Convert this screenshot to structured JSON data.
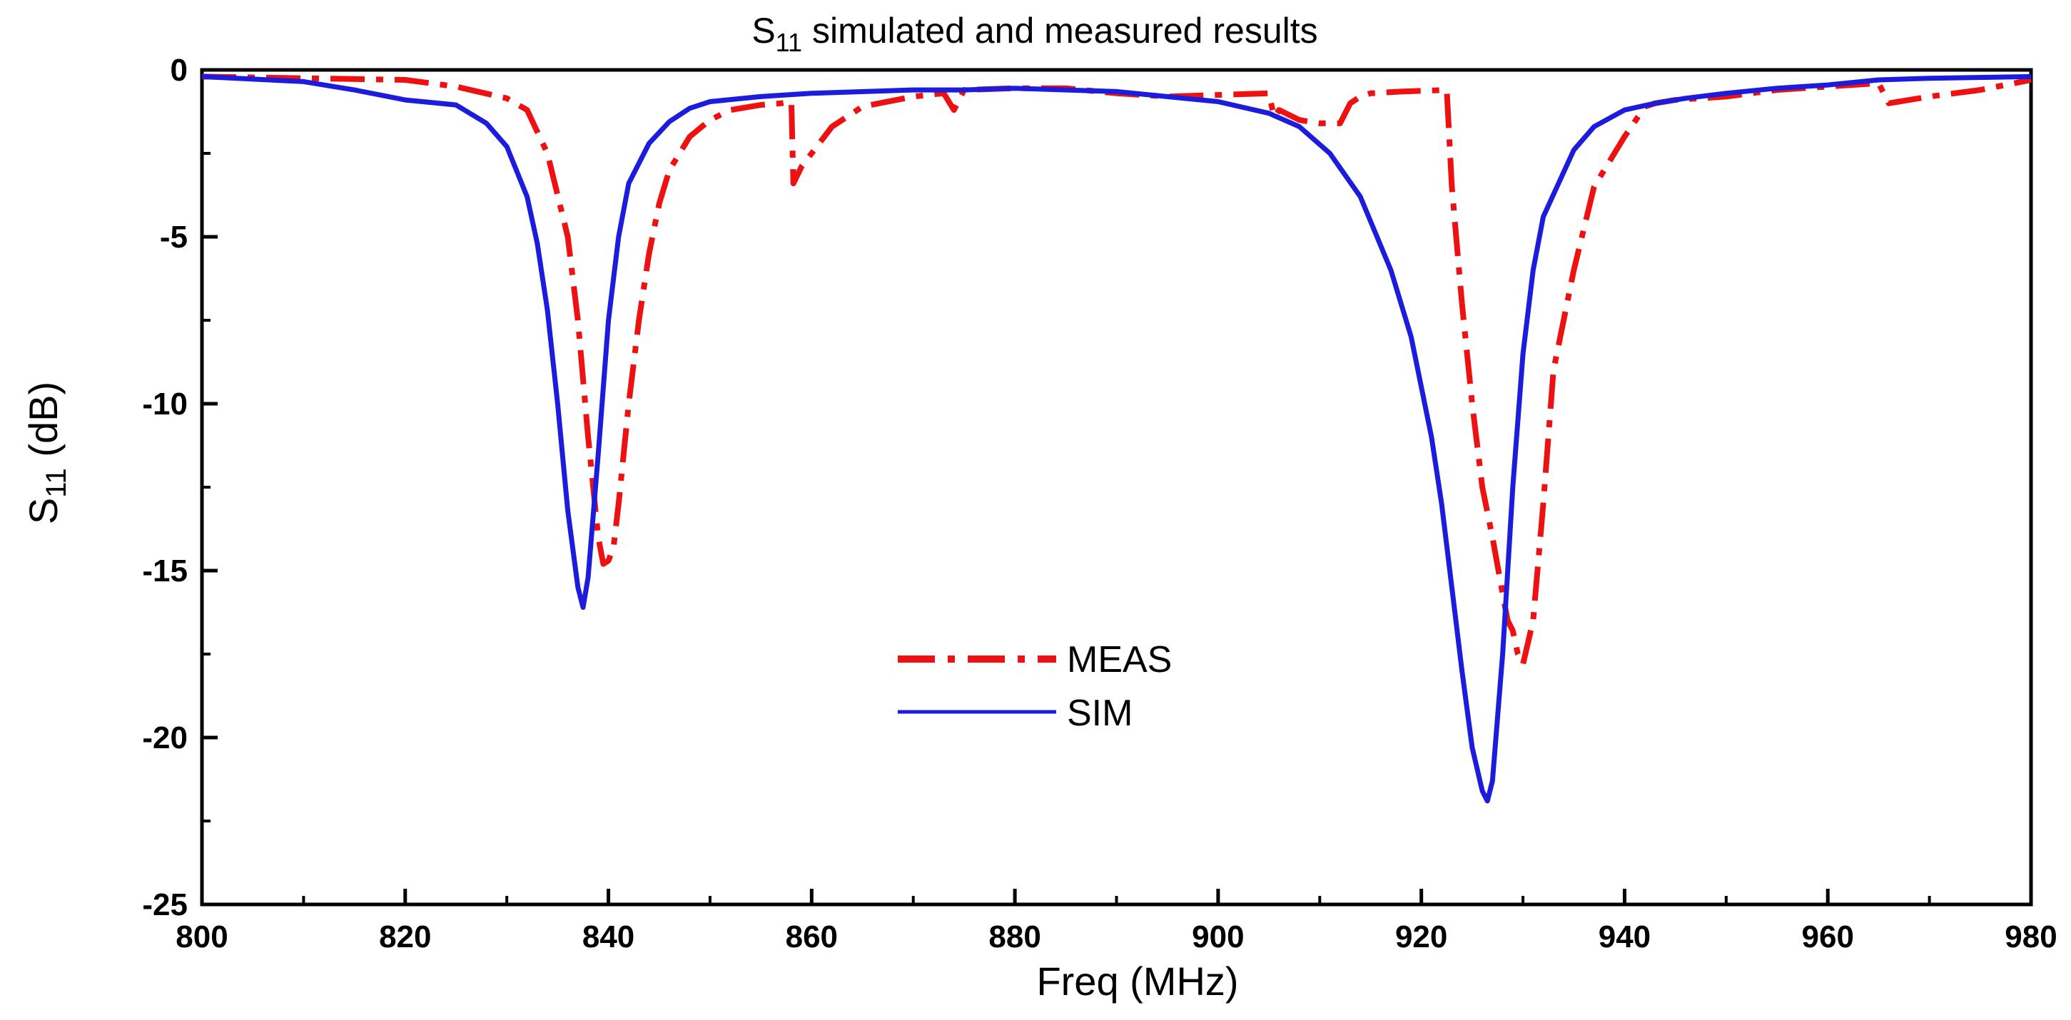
{
  "chart_data": {
    "type": "line",
    "title": "S11 simulated and measured results",
    "title_main": "S",
    "title_sub": "11",
    "title_rest": " simulated and measured results",
    "xlabel": "Freq (MHz)",
    "ylabel_main": "S",
    "ylabel_sub": "11",
    "ylabel_rest": " (dB)",
    "xlim": [
      800,
      980
    ],
    "ylim": [
      -25,
      0
    ],
    "xticks": [
      800,
      820,
      840,
      860,
      880,
      900,
      920,
      940,
      960,
      980
    ],
    "xtick_labels": [
      "800",
      "820",
      "840",
      "860",
      "880",
      "900",
      "920",
      "940",
      "960",
      "980"
    ],
    "yticks": [
      0,
      -5,
      -10,
      -15,
      -20,
      -25
    ],
    "ytick_labels": [
      "0",
      "-5",
      "-10",
      "-15",
      "-20",
      "-25"
    ],
    "grid": false,
    "legend_position": "center",
    "series": [
      {
        "name": "MEAS",
        "color": "#ee1111",
        "style": "dash-dot",
        "x": [
          800,
          810,
          820,
          825,
          830,
          832,
          834,
          836,
          837,
          838,
          839,
          839.5,
          840,
          840.5,
          841,
          842,
          843,
          844,
          845,
          846,
          848,
          850,
          852,
          855,
          857,
          858,
          858.2,
          859,
          860,
          862,
          865,
          870,
          873,
          874,
          874.5,
          875,
          880,
          885,
          890,
          895,
          900,
          905,
          905.5,
          906,
          908,
          910,
          912,
          913,
          914,
          915,
          918,
          922.5,
          923,
          924,
          925,
          926,
          927,
          928,
          928.5,
          929,
          929.5,
          930,
          931,
          932,
          933,
          935,
          937,
          940,
          942,
          943,
          945,
          950,
          955,
          960,
          965,
          966,
          967,
          970,
          975,
          980
        ],
        "y": [
          -0.2,
          -0.25,
          -0.3,
          -0.5,
          -0.85,
          -1.2,
          -2.5,
          -5,
          -7.5,
          -11,
          -14,
          -14.8,
          -14.7,
          -14.3,
          -13,
          -10,
          -7.5,
          -5.5,
          -4,
          -3,
          -2,
          -1.5,
          -1.2,
          -1.05,
          -1.0,
          -0.95,
          -3.4,
          -2.9,
          -2.5,
          -1.7,
          -1.1,
          -0.8,
          -0.7,
          -1.2,
          -0.9,
          -0.6,
          -0.55,
          -0.55,
          -0.7,
          -0.8,
          -0.75,
          -0.7,
          -1.4,
          -1.2,
          -1.5,
          -1.6,
          -1.6,
          -1.0,
          -0.8,
          -0.7,
          -0.65,
          -0.6,
          -3.5,
          -7,
          -10,
          -12.5,
          -14,
          -15.7,
          -16.5,
          -16.8,
          -17.5,
          -17.8,
          -16.5,
          -13,
          -9,
          -6,
          -3.5,
          -2,
          -1.1,
          -1.0,
          -0.9,
          -0.8,
          -0.6,
          -0.5,
          -0.4,
          -1.0,
          -0.95,
          -0.8,
          -0.6,
          -0.3
        ]
      },
      {
        "name": "SIM",
        "color": "#1c1cdd",
        "style": "solid",
        "x": [
          800,
          810,
          815,
          820,
          825,
          828,
          830,
          832,
          833,
          834,
          835,
          836,
          837,
          837.5,
          838,
          839,
          840,
          841,
          842,
          844,
          846,
          848,
          850,
          855,
          860,
          870,
          875,
          880,
          890,
          900,
          905,
          908,
          911,
          914,
          917,
          919,
          921,
          922,
          923,
          924,
          925,
          926,
          926.5,
          927,
          928,
          929,
          930,
          931,
          932,
          935,
          937,
          940,
          943,
          946,
          950,
          955,
          960,
          965,
          970,
          980
        ],
        "y": [
          -0.2,
          -0.35,
          -0.6,
          -0.9,
          -1.05,
          -1.6,
          -2.3,
          -3.8,
          -5.2,
          -7.2,
          -10,
          -13.2,
          -15.5,
          -16.1,
          -15.2,
          -11.5,
          -7.5,
          -5,
          -3.4,
          -2.2,
          -1.55,
          -1.15,
          -0.95,
          -0.8,
          -0.7,
          -0.6,
          -0.6,
          -0.55,
          -0.65,
          -0.95,
          -1.3,
          -1.7,
          -2.5,
          -3.8,
          -6,
          -8,
          -11,
          -13,
          -15.5,
          -18,
          -20.3,
          -21.6,
          -21.9,
          -21.3,
          -17.5,
          -12.5,
          -8.5,
          -6,
          -4.4,
          -2.4,
          -1.7,
          -1.2,
          -1.0,
          -0.85,
          -0.7,
          -0.55,
          -0.45,
          -0.3,
          -0.25,
          -0.2
        ]
      }
    ]
  }
}
